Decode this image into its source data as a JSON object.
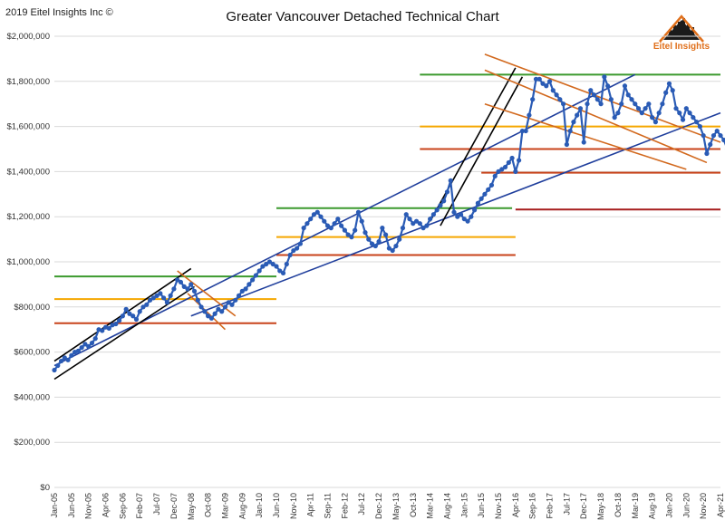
{
  "copyright": "2019 Eitel Insights Inc ©",
  "logo_text": "Eitel Insights",
  "chart_data": {
    "type": "line",
    "title": "Greater Vancouver Detached Technical Chart",
    "xlabel": "",
    "ylabel": "",
    "ylim": [
      0,
      2000000
    ],
    "grid": "horizontal",
    "legend": "none",
    "y_ticks": [
      "$0",
      "$200,000",
      "$400,000",
      "$600,000",
      "$800,000",
      "$1,000,000",
      "$1,200,000",
      "$1,400,000",
      "$1,600,000",
      "$1,800,000",
      "$2,000,000"
    ],
    "x_ticks": [
      "Jan-05",
      "Jun-05",
      "Nov-05",
      "Apr-06",
      "Sep-06",
      "Feb-07",
      "Jul-07",
      "Dec-07",
      "May-08",
      "Oct-08",
      "Mar-09",
      "Aug-09",
      "Jan-10",
      "Jun-10",
      "Nov-10",
      "Apr-11",
      "Sep-11",
      "Feb-12",
      "Jul-12",
      "Dec-12",
      "May-13",
      "Oct-13",
      "Mar-14",
      "Aug-14",
      "Jan-15",
      "Jun-15",
      "Nov-15",
      "Apr-16",
      "Sep-16",
      "Feb-17",
      "Jul-17",
      "Dec-17",
      "May-18",
      "Oct-18",
      "Mar-19",
      "Aug-19",
      "Jan-20",
      "Jun-20",
      "Nov-20",
      "Apr-21"
    ],
    "series": [
      {
        "color": "#2a5bb5",
        "start": "Jan-05",
        "values": [
          520000,
          540000,
          560000,
          575000,
          565000,
          585000,
          600000,
          605000,
          620000,
          635000,
          625000,
          640000,
          660000,
          700000,
          695000,
          710000,
          705000,
          720000,
          725000,
          740000,
          760000,
          790000,
          770000,
          760000,
          745000,
          780000,
          800000,
          810000,
          830000,
          840000,
          850000,
          860000,
          840000,
          820000,
          850000,
          880000,
          920000,
          910000,
          890000,
          880000,
          900000,
          870000,
          830000,
          800000,
          780000,
          760000,
          750000,
          770000,
          790000,
          780000,
          800000,
          820000,
          810000,
          830000,
          850000,
          870000,
          880000,
          900000,
          920000,
          940000,
          960000,
          980000,
          990000,
          1000000,
          990000,
          980000,
          960000,
          950000,
          990000,
          1030000,
          1050000,
          1060000,
          1080000,
          1150000,
          1170000,
          1190000,
          1210000,
          1220000,
          1200000,
          1180000,
          1160000,
          1150000,
          1170000,
          1190000,
          1160000,
          1140000,
          1120000,
          1110000,
          1140000,
          1220000,
          1180000,
          1130000,
          1100000,
          1080000,
          1070000,
          1090000,
          1150000,
          1120000,
          1060000,
          1050000,
          1070000,
          1100000,
          1150000,
          1210000,
          1190000,
          1170000,
          1180000,
          1170000,
          1150000,
          1160000,
          1190000,
          1210000,
          1230000,
          1250000,
          1270000,
          1310000,
          1360000,
          1220000,
          1200000,
          1210000,
          1190000,
          1180000,
          1200000,
          1230000,
          1260000,
          1280000,
          1300000,
          1320000,
          1340000,
          1380000,
          1400000,
          1410000,
          1420000,
          1440000,
          1460000,
          1400000,
          1450000,
          1580000,
          1580000,
          1650000,
          1720000,
          1810000,
          1810000,
          1790000,
          1780000,
          1800000,
          1760000,
          1740000,
          1720000,
          1700000,
          1520000,
          1580000,
          1620000,
          1650000,
          1680000,
          1530000,
          1700000,
          1760000,
          1740000,
          1720000,
          1700000,
          1820000,
          1780000,
          1720000,
          1640000,
          1660000,
          1700000,
          1780000,
          1740000,
          1720000,
          1700000,
          1680000,
          1660000,
          1680000,
          1700000,
          1640000,
          1620000,
          1660000,
          1700000,
          1750000,
          1790000,
          1760000,
          1680000,
          1660000,
          1630000,
          1680000,
          1660000,
          1640000,
          1620000,
          1600000,
          1560000,
          1480000,
          1520000,
          1560000,
          1580000,
          1560000,
          1540000,
          1500000,
          1520000,
          1560000
        ]
      }
    ],
    "support_resistance": [
      {
        "color": "#3b9a2e",
        "y": 935000,
        "from": "Jan-05",
        "to": "Jun-10"
      },
      {
        "color": "#f5a700",
        "y": 835000,
        "from": "Jan-05",
        "to": "Jun-10"
      },
      {
        "color": "#c8431a",
        "y": 728000,
        "from": "Jan-05",
        "to": "Jun-10"
      },
      {
        "color": "#3b9a2e",
        "y": 1238000,
        "from": "Jun-10",
        "to": "Mar-16"
      },
      {
        "color": "#f5a700",
        "y": 1110000,
        "from": "Jun-10",
        "to": "Apr-16"
      },
      {
        "color": "#c8431a",
        "y": 1030000,
        "from": "Jun-10",
        "to": "Apr-16"
      },
      {
        "color": "#3b9a2e",
        "y": 1830000,
        "from": "Dec-13",
        "to": "Apr-21"
      },
      {
        "color": "#f5a700",
        "y": 1600000,
        "from": "Dec-13",
        "to": "Apr-21"
      },
      {
        "color": "#c8431a",
        "y": 1500000,
        "from": "Dec-13",
        "to": "Apr-21"
      },
      {
        "color": "#c8431a",
        "y": 1395000,
        "from": "Jun-15",
        "to": "Apr-21"
      },
      {
        "color": "#a61c1c",
        "y": 1232000,
        "from": "Apr-16",
        "to": "Apr-21"
      }
    ],
    "trend_lines": [
      {
        "color": "#1f3e9c",
        "from": [
          "Jan-05",
          540000
        ],
        "to": [
          "Mar-19",
          1830000
        ]
      },
      {
        "color": "#1f3e9c",
        "from": [
          "May-08",
          760000
        ],
        "to": [
          "Apr-21",
          1660000
        ]
      },
      {
        "color": "#000000",
        "from": [
          "Jan-05",
          560000
        ],
        "to": [
          "May-08",
          970000
        ]
      },
      {
        "color": "#000000",
        "from": [
          "Jan-05",
          480000
        ],
        "to": [
          "Jun-08",
          890000
        ]
      },
      {
        "color": "#000000",
        "from": [
          "Mar-14",
          1180000
        ],
        "to": [
          "Apr-16",
          1860000
        ]
      },
      {
        "color": "#000000",
        "from": [
          "Jun-14",
          1160000
        ],
        "to": [
          "Jun-16",
          1820000
        ]
      },
      {
        "color": "#d2691e",
        "from": [
          "Jan-08",
          960000
        ],
        "to": [
          "Jun-09",
          760000
        ]
      },
      {
        "color": "#d2691e",
        "from": [
          "Apr-08",
          860000
        ],
        "to": [
          "Mar-09",
          700000
        ]
      },
      {
        "color": "#d2691e",
        "from": [
          "Jul-15",
          1920000
        ],
        "to": [
          "Apr-21",
          1530000
        ]
      },
      {
        "color": "#d2691e",
        "from": [
          "Jul-15",
          1850000
        ],
        "to": [
          "Dec-20",
          1440000
        ]
      },
      {
        "color": "#d2691e",
        "from": [
          "Jul-15",
          1700000
        ],
        "to": [
          "Jun-20",
          1410000
        ]
      }
    ]
  }
}
